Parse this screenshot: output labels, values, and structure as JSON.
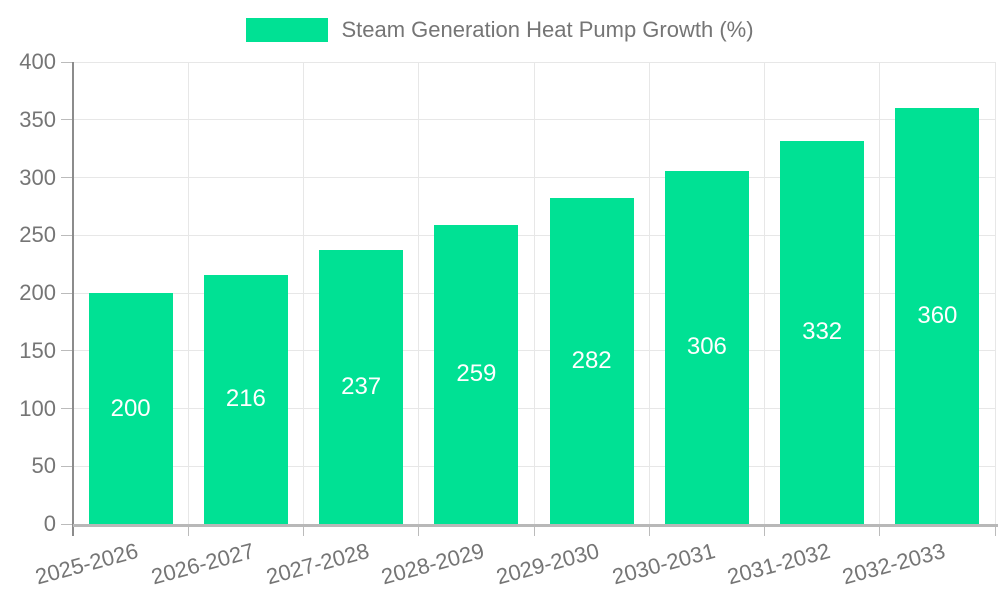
{
  "legend": {
    "label": "Steam Generation Heat Pump Growth (%)"
  },
  "colors": {
    "bar": "#00e194",
    "grid": "#e7e7e7",
    "y_axis": "#8c8c8c",
    "x_axis": "#b8b8b8",
    "tick": "#bbbbbb",
    "text": "#757575",
    "value_label": "#ffffff",
    "background": "#ffffff"
  },
  "chart_data": {
    "type": "bar",
    "title": "Steam Generation Heat Pump Growth (%)",
    "categories": [
      "2025-2026",
      "2026-2027",
      "2027-2028",
      "2028-2029",
      "2029-2030",
      "2030-2031",
      "2031-2032",
      "2032-2033"
    ],
    "values": [
      200,
      216,
      237,
      259,
      282,
      306,
      332,
      360
    ],
    "xlabel": "",
    "ylabel": "",
    "ylim": [
      0,
      400
    ],
    "ytick_step": 50,
    "yticks": [
      0,
      50,
      100,
      150,
      200,
      250,
      300,
      350,
      400
    ],
    "grid": true,
    "legend_position": "top",
    "value_label_position": "inside-center",
    "xtick_rotation_deg": -15
  }
}
